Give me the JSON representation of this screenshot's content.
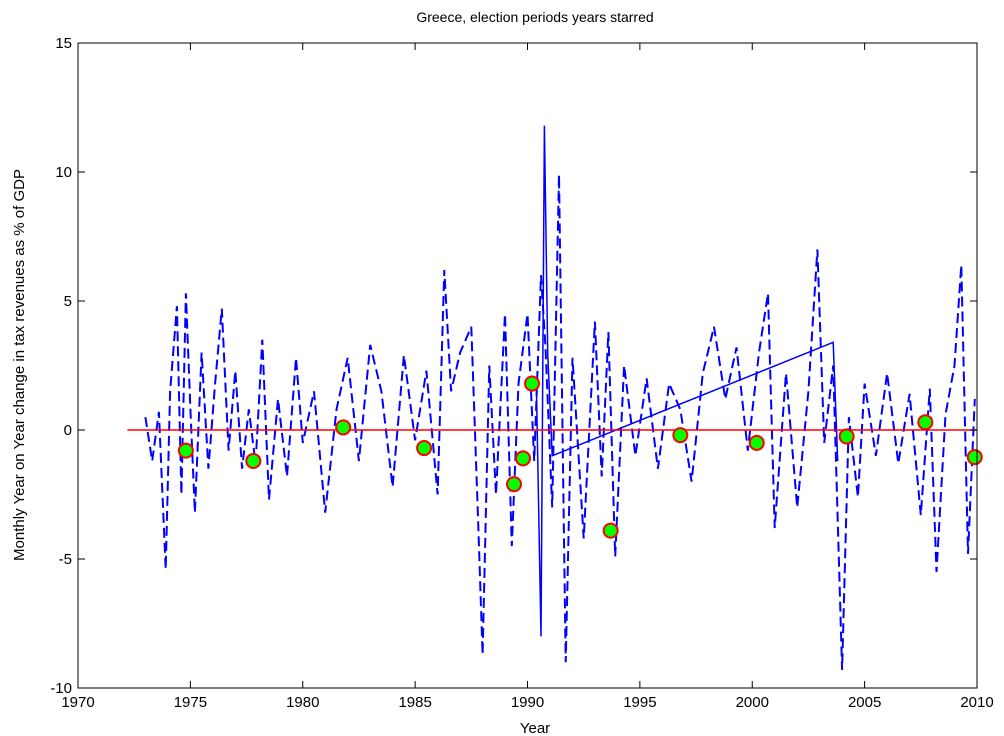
{
  "chart_data": {
    "type": "line",
    "title": "Greece, election periods years starred",
    "xlabel": "Year",
    "ylabel": "Monthly Year on Year change in tax revenues as % of GDP",
    "xlim": [
      1970,
      2010
    ],
    "ylim": [
      -10,
      15
    ],
    "xticks": [
      1970,
      1975,
      1980,
      1985,
      1990,
      1995,
      2000,
      2005,
      2010
    ],
    "yticks": [
      -10,
      -5,
      0,
      5,
      10,
      15
    ],
    "grid": false,
    "colors": {
      "series": "#0000ff",
      "zero_line": "#ff0000",
      "marker_fill": "#00ff00",
      "marker_edge": "#ff0000"
    },
    "series": [
      {
        "style": "dashed",
        "x": [
          1973.0,
          1973.3,
          1973.6,
          1973.9,
          1974.1,
          1974.4,
          1974.6,
          1974.8,
          1975.0,
          1975.2,
          1975.5,
          1975.8,
          1976.1,
          1976.4,
          1976.7,
          1977.0,
          1977.3,
          1977.6,
          1977.9,
          1978.2,
          1978.5,
          1978.9,
          1979.3,
          1979.7,
          1980.0,
          1980.5,
          1981.0,
          1981.5,
          1982.0,
          1982.5,
          1983.0,
          1983.5,
          1984.0,
          1984.5,
          1985.0,
          1985.5,
          1986.0,
          1986.3,
          1986.6,
          1987.0,
          1987.5,
          1987.8,
          1988.0,
          1988.3,
          1988.6,
          1989.0,
          1989.3,
          1989.6,
          1990.0,
          1990.3,
          1990.6,
          1990.8,
          1991.1,
          1991.4,
          1991.7,
          1992.0,
          1992.5,
          1993.0,
          1993.3,
          1993.6,
          1993.9,
          1994.3,
          1994.8,
          1995.3,
          1995.8,
          1996.3,
          1996.8,
          1997.3,
          1997.8,
          1998.3,
          1998.8,
          1999.3,
          1999.8,
          2000.3,
          2000.7,
          2001.0,
          2001.5,
          2002.0,
          2002.5,
          2002.9,
          2003.2,
          2003.6,
          2004.0,
          2004.3,
          2004.7,
          2005.0,
          2005.5,
          2006.0,
          2006.5,
          2007.0,
          2007.5,
          2007.9,
          2008.2,
          2008.6,
          2009.0,
          2009.3,
          2009.6,
          2009.9
        ],
        "y": [
          0.5,
          -1.2,
          0.7,
          -5.4,
          1.5,
          4.8,
          -2.5,
          5.3,
          0.8,
          -3.2,
          3.0,
          -1.5,
          1.8,
          4.7,
          -0.8,
          2.3,
          -1.5,
          0.8,
          -1.3,
          3.5,
          -2.7,
          1.2,
          -1.8,
          2.8,
          -0.5,
          1.5,
          -3.2,
          0.8,
          2.8,
          -1.2,
          3.3,
          1.5,
          -2.2,
          2.9,
          -0.4,
          2.3,
          -2.5,
          6.2,
          1.5,
          3.0,
          4.0,
          -3.5,
          -8.7,
          2.5,
          -2.5,
          4.5,
          -4.5,
          1.8,
          4.5,
          -1.2,
          6.0,
          3.2,
          -3.0,
          9.9,
          -9.0,
          2.8,
          -4.2,
          4.2,
          -1.8,
          3.8,
          -4.9,
          2.5,
          -1.0,
          2.0,
          -1.5,
          1.8,
          0.8,
          -2.0,
          2.2,
          4.0,
          1.2,
          3.2,
          -0.8,
          3.0,
          5.3,
          -3.8,
          2.2,
          -3.0,
          1.5,
          7.0,
          -0.5,
          2.5,
          -9.3,
          0.5,
          -2.6,
          1.8,
          -1.0,
          2.2,
          -1.3,
          1.4,
          -3.3,
          1.6,
          -5.5,
          0.6,
          2.5,
          6.4,
          -4.8,
          1.2
        ]
      },
      {
        "style": "solid",
        "x": [
          1990.4,
          1990.6,
          1990.75,
          1990.9,
          1991.1,
          2003.6,
          2003.8
        ],
        "y": [
          1.5,
          -8.0,
          11.8,
          3.0,
          -1.0,
          3.4,
          -1.2
        ]
      }
    ],
    "reference_line": {
      "y": 0,
      "x": [
        1972.2,
        2010
      ]
    },
    "markers": {
      "x": [
        1974.8,
        1977.8,
        1981.8,
        1985.4,
        1989.4,
        1989.8,
        1990.2,
        1993.7,
        1996.8,
        2000.2,
        2004.2,
        2007.7,
        2009.9
      ],
      "y": [
        -0.8,
        -1.2,
        0.1,
        -0.7,
        -2.1,
        -1.1,
        1.8,
        -3.9,
        -0.2,
        -0.5,
        -0.25,
        0.3,
        -1.05
      ]
    }
  }
}
